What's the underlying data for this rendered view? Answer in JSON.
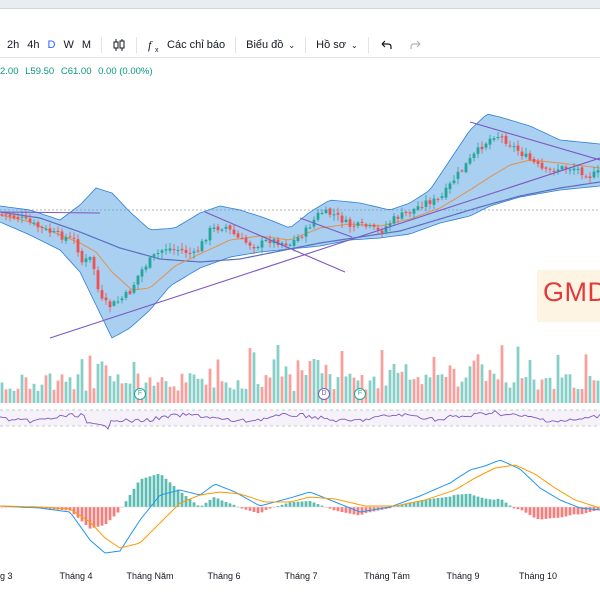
{
  "toolbar": {
    "timeframes": [
      "2h",
      "4h",
      "D",
      "W",
      "M"
    ],
    "active_timeframe": "D",
    "chart_type_icon": "candles-icon",
    "indicators_icon": "fx-icon",
    "indicators_label": "Các chỉ báo",
    "chart_label": "Biểu đồ",
    "profile_label": "Hồ sơ",
    "undo_icon": "undo-icon",
    "redo_icon": "redo-icon"
  },
  "ohlc": {
    "high": "2.00",
    "low": "L59.50",
    "close": "C61.00",
    "change": "0.00 (0.00%)"
  },
  "watermark": "GMD",
  "x_axis": [
    "g 3",
    "Tháng 4",
    "Tháng Năm",
    "Tháng 6",
    "Tháng 7",
    "Tháng Tám",
    "Tháng 9",
    "Tháng 10"
  ],
  "markers": [
    "F",
    "D",
    "F"
  ],
  "colors": {
    "up": "#26a69a",
    "down": "#ef5350",
    "band_fill": "#62a8e5",
    "band_line": "#2f7fd6",
    "sma": "#e8904a",
    "ma_long": "#5b6fbf",
    "trendline": "#7e57c2",
    "macd": "#2196f3",
    "signal": "#ff9800",
    "rsi": "#7e57c2"
  }
}
